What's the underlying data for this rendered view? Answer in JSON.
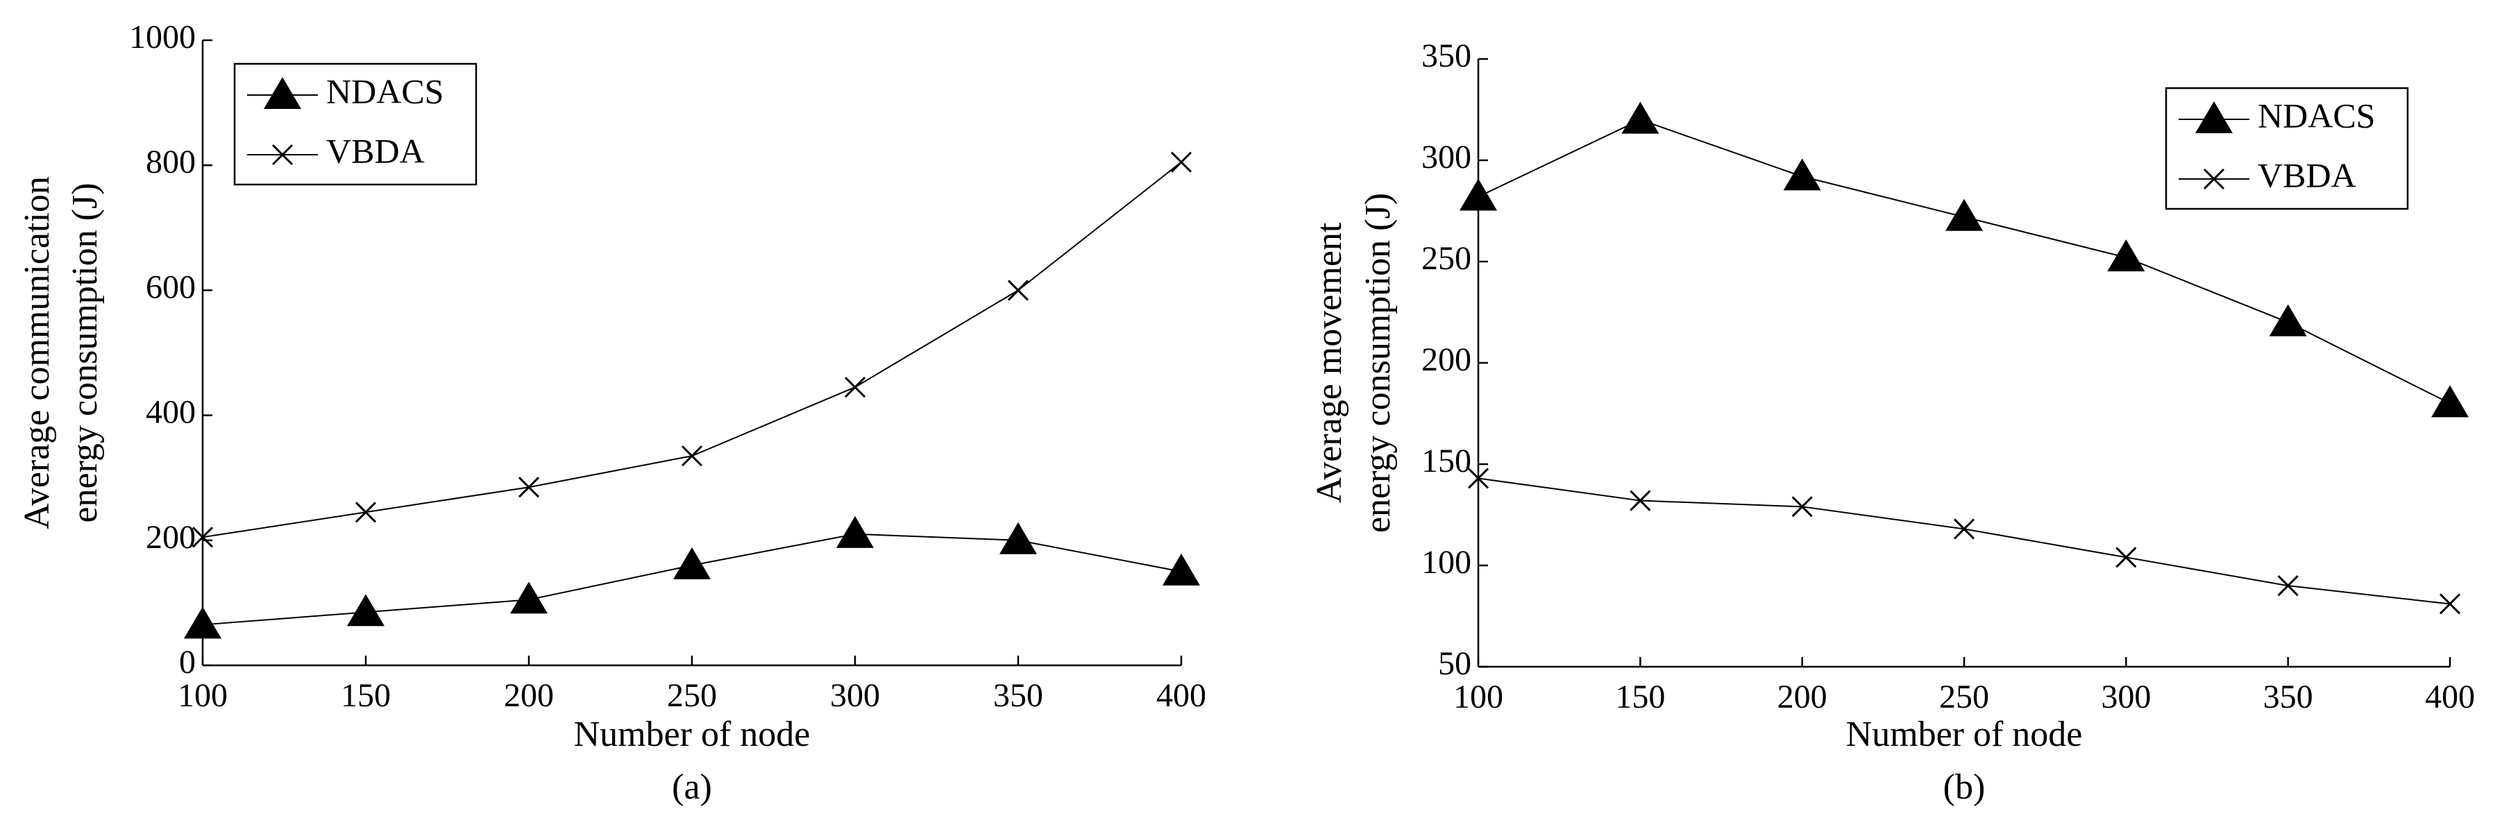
{
  "chart_data": [
    {
      "type": "line",
      "ylabel": [
        "Average communication",
        "energy consumption (J)"
      ],
      "xlabel": "Number of node",
      "caption": "(a)",
      "x": [
        100,
        150,
        200,
        250,
        300,
        350,
        400
      ],
      "xlim": [
        100,
        400
      ],
      "xticks": [
        100,
        150,
        200,
        250,
        300,
        350,
        400
      ],
      "ylim": [
        0,
        1000
      ],
      "yticks": [
        0,
        200,
        400,
        600,
        800,
        1000
      ],
      "legend": "upper left",
      "series": [
        {
          "name": "NDACS",
          "color": "#000000",
          "marker": "triangle",
          "values": [
            65,
            85,
            105,
            160,
            210,
            200,
            150
          ]
        },
        {
          "name": "VBDA",
          "color": "#000000",
          "marker": "x",
          "values": [
            205,
            245,
            285,
            335,
            445,
            600,
            805
          ]
        }
      ]
    },
    {
      "type": "line",
      "ylabel": [
        "Average movement",
        "energy consumption (J)"
      ],
      "xlabel": "Number of node",
      "caption": "(b)",
      "x": [
        100,
        150,
        200,
        250,
        300,
        350,
        400
      ],
      "xlim": [
        100,
        400
      ],
      "xticks": [
        100,
        150,
        200,
        250,
        300,
        350,
        400
      ],
      "ylim": [
        50,
        350
      ],
      "yticks": [
        50,
        100,
        150,
        200,
        250,
        300,
        350
      ],
      "legend": "upper right",
      "series": [
        {
          "name": "NDACS",
          "color": "#000000",
          "marker": "triangle",
          "values": [
            282,
            320,
            292,
            272,
            252,
            220,
            180
          ]
        },
        {
          "name": "VBDA",
          "color": "#000000",
          "marker": "x",
          "values": [
            143,
            132,
            129,
            118,
            104,
            90,
            81
          ]
        }
      ]
    }
  ]
}
